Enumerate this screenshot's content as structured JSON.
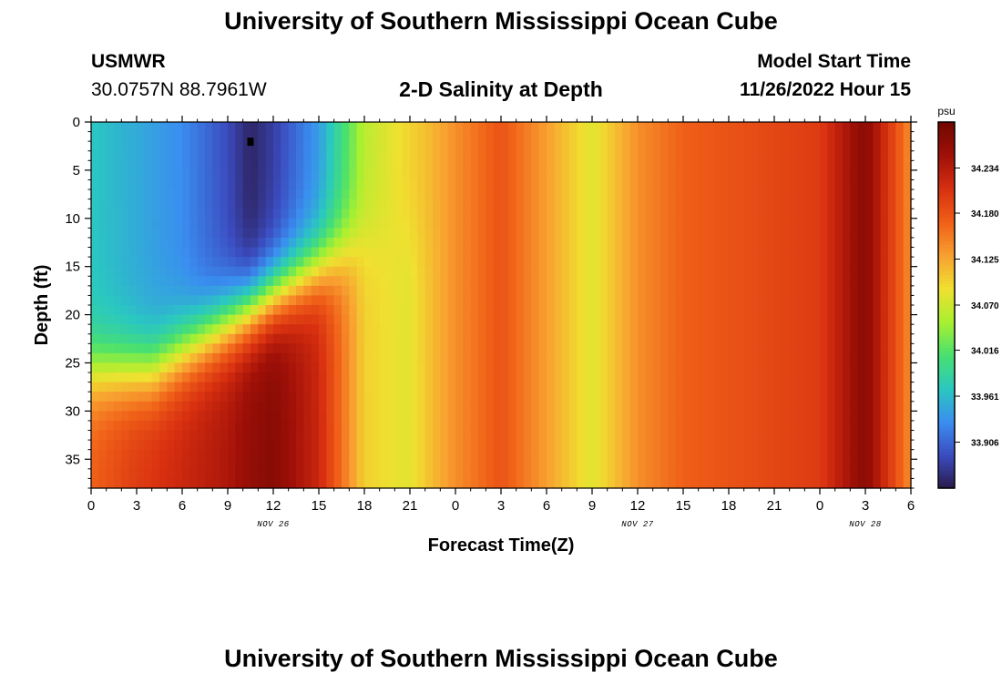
{
  "page": {
    "title_top": "University of Southern Mississippi Ocean Cube",
    "title_bottom": "University of Southern Mississippi Ocean Cube",
    "station_name": "USMWR",
    "station_coords": "30.0757N  88.7961W",
    "plot_title": "2-D Salinity at Depth",
    "model_start_label": "Model Start Time",
    "model_start_value": "11/26/2022 Hour 15"
  },
  "chart_data": {
    "type": "heatmap",
    "title": "2-D Salinity at Depth",
    "xlabel": "Forecast Time(Z)",
    "ylabel": "Depth (ft)",
    "x_hours": [
      0,
      3,
      6,
      9,
      12,
      15,
      18,
      21,
      24,
      27,
      30,
      33,
      36,
      39,
      42,
      45,
      48,
      51,
      54
    ],
    "x_tick_labels": [
      "0",
      "3",
      "6",
      "9",
      "12",
      "15",
      "18",
      "21",
      "0",
      "3",
      "6",
      "9",
      "12",
      "15",
      "18",
      "21",
      "0",
      "3",
      "6"
    ],
    "x_range": [
      0,
      54
    ],
    "day_labels": [
      {
        "hour": 12,
        "label": "NOV 26"
      },
      {
        "hour": 36,
        "label": "NOV 27"
      },
      {
        "hour": 51,
        "label": "NOV 28"
      }
    ],
    "y_ticks": [
      0,
      5,
      10,
      15,
      20,
      25,
      30,
      35
    ],
    "y_range": [
      0,
      38
    ],
    "y_reversed": true,
    "colorbar": {
      "unit": "psu",
      "min": 33.851,
      "max": 34.289,
      "tick_values": [
        34.234,
        34.18,
        34.125,
        34.07,
        34.016,
        33.961,
        33.906
      ],
      "tick_labels": [
        "34.234",
        "34.180",
        "34.125",
        "34.070",
        "34.016",
        "33.961",
        "33.906"
      ]
    },
    "colormap": [
      "#2a1a4a",
      "#3b4cc0",
      "#3a8ef0",
      "#2ac8c0",
      "#48e070",
      "#a8f030",
      "#f0e030",
      "#f8a030",
      "#f06018",
      "#d83010",
      "#a01008",
      "#700800"
    ],
    "surface_salinity_series": {
      "hours": [
        0,
        3,
        6,
        9,
        10.5,
        12,
        15,
        18,
        21,
        24,
        27,
        30,
        33,
        36,
        39,
        42,
        45,
        48,
        51,
        54
      ],
      "psu": [
        33.97,
        33.95,
        33.93,
        33.89,
        33.86,
        33.88,
        33.94,
        34.06,
        34.1,
        34.14,
        34.18,
        34.13,
        34.07,
        34.14,
        34.17,
        34.18,
        34.19,
        34.2,
        34.27,
        34.14
      ]
    },
    "bottom_salinity_series": {
      "hours": [
        0,
        3,
        6,
        9,
        10.5,
        12,
        15,
        18,
        21,
        24,
        27,
        30,
        33,
        36,
        39,
        42,
        45,
        48,
        51,
        54
      ],
      "psu": [
        34.17,
        34.2,
        34.22,
        34.24,
        34.26,
        34.27,
        34.22,
        34.1,
        34.08,
        34.14,
        34.18,
        34.13,
        34.09,
        34.14,
        34.17,
        34.18,
        34.19,
        34.2,
        34.27,
        34.14
      ]
    },
    "marker": {
      "hour": 10.5,
      "depth": 2
    }
  }
}
